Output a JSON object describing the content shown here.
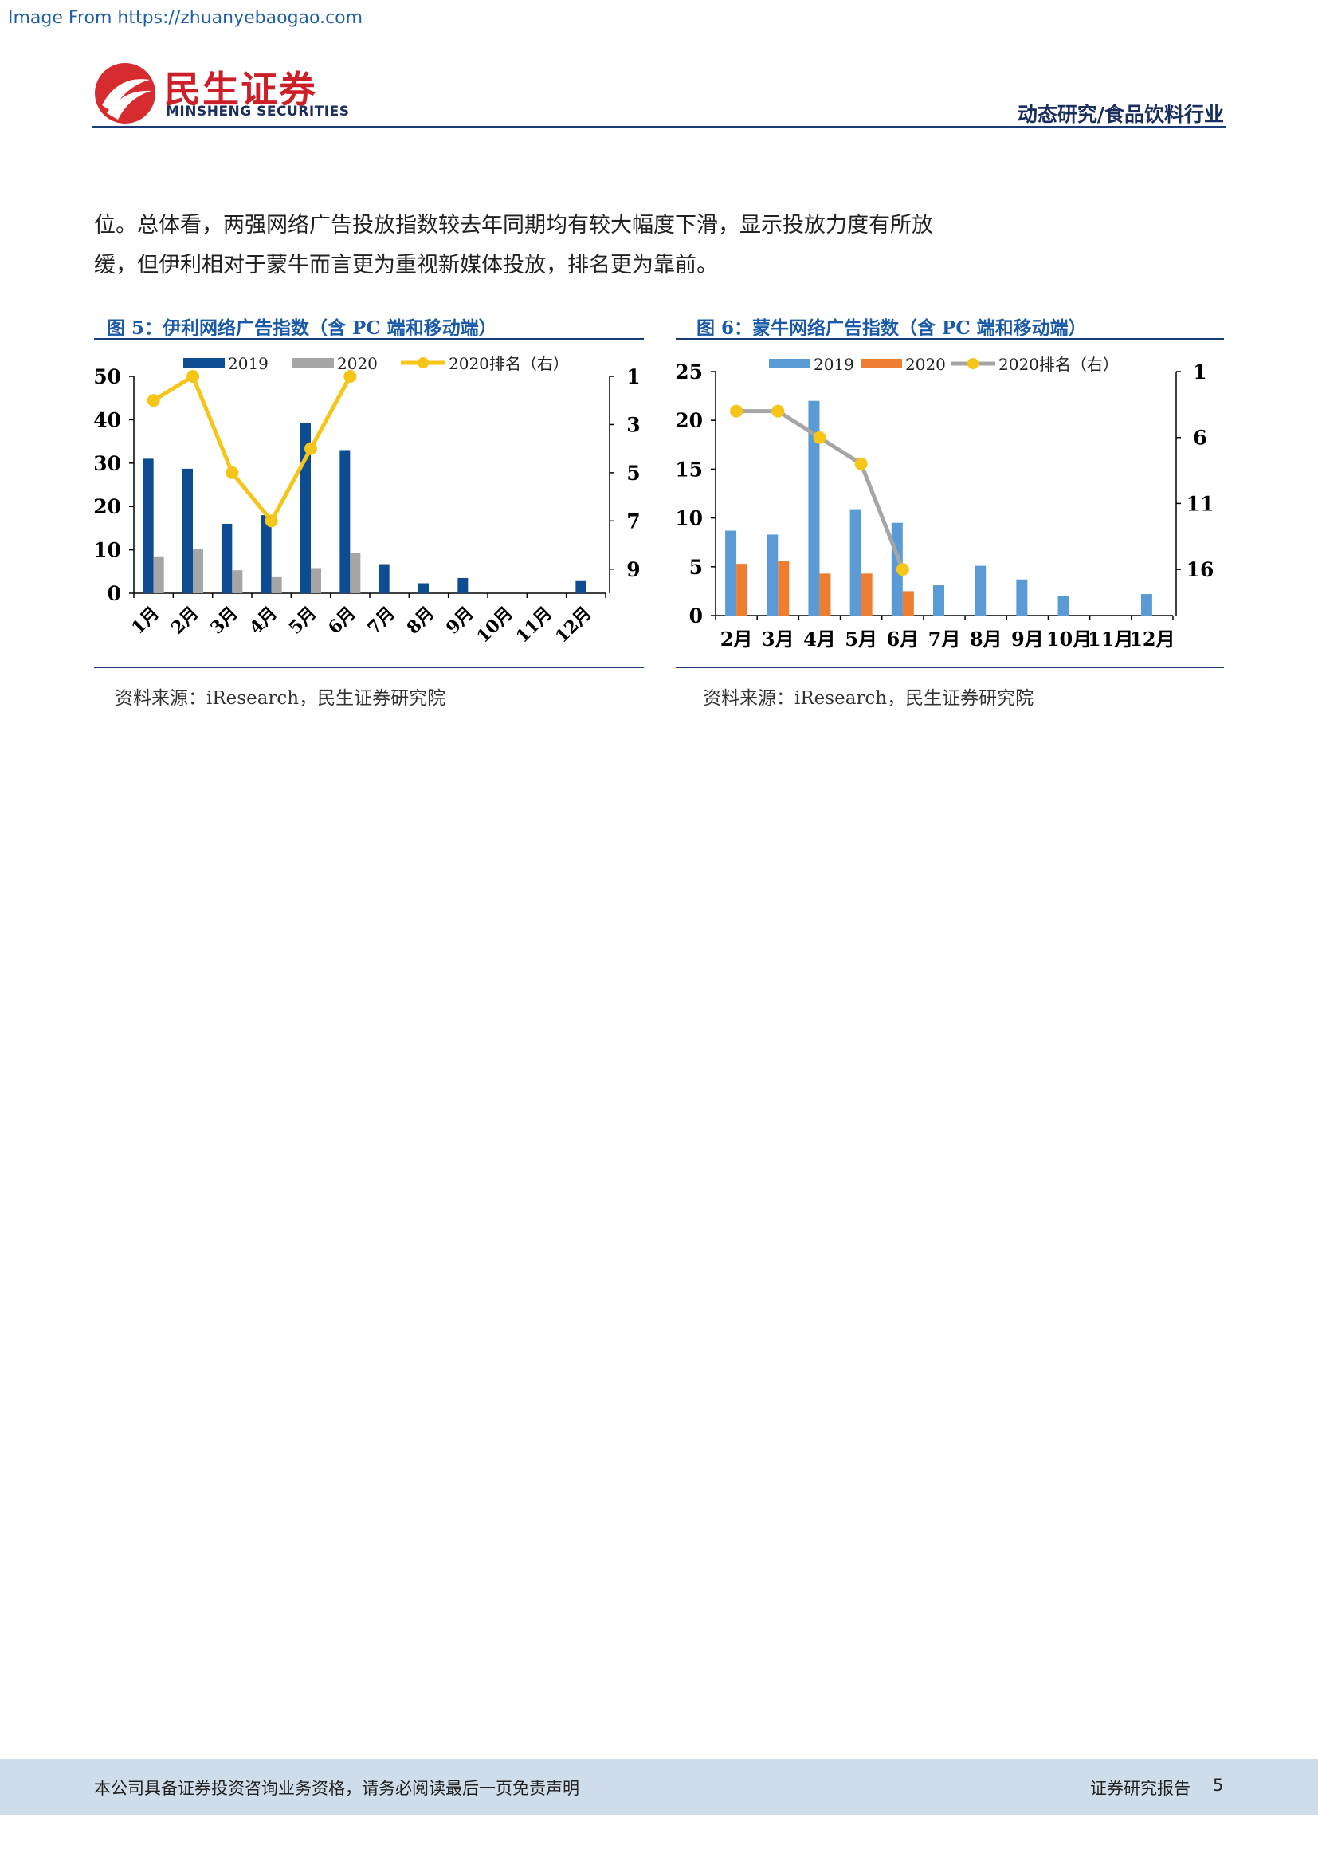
{
  "watermark": "Image From https://zhuanyebaogao.com",
  "brand": {
    "cn": "民生证券",
    "en": "MINSHENG SECURITIES"
  },
  "header": {
    "category": "动态研究/食品饮料行业"
  },
  "body": {
    "lines": [
      "位。总体看，两强网络广告投放指数较去年同期均有较大幅度下滑，显示投放力度有所放",
      "缓，但伊利相对于蒙牛而言更为重视新媒体投放，排名更为靠前。"
    ]
  },
  "figures": [
    {
      "title": "图 5：伊利网络广告指数（含 PC 端和移动端）",
      "source": "资料来源：iResearch，民生证券研究院"
    },
    {
      "title": "图 6：蒙牛网络广告指数（含 PC 端和移动端）",
      "source": "资料来源：iResearch，民生证券研究院"
    }
  ],
  "chart_data": [
    {
      "type": "bar",
      "categories": [
        "1月",
        "2月",
        "3月",
        "4月",
        "5月",
        "6月",
        "7月",
        "8月",
        "9月",
        "10月",
        "11月",
        "12月"
      ],
      "series": [
        {
          "name": "2019",
          "values": [
            31,
            28.7,
            16,
            18,
            39.3,
            33,
            6.7,
            2.3,
            3.5,
            null,
            null,
            2.8
          ],
          "color": "#0e4c92"
        },
        {
          "name": "2020",
          "values": [
            8.5,
            10.3,
            5.3,
            3.7,
            5.8,
            9.3,
            null,
            null,
            null,
            null,
            null,
            null
          ],
          "color": "#a6a6a6"
        },
        {
          "name": "2020排名（右）",
          "type": "line",
          "axis": "right",
          "values": [
            2,
            1,
            5,
            7,
            4,
            1,
            null,
            null,
            null,
            null,
            null,
            null
          ],
          "color": "#f5c518"
        }
      ],
      "ylim": [
        0,
        50
      ],
      "yticks": [
        0,
        10,
        20,
        30,
        40,
        50
      ],
      "y2lim": [
        10,
        1
      ],
      "y2ticks": [
        1,
        3,
        5,
        7,
        9
      ],
      "y2_reversed": true,
      "legend": "top"
    },
    {
      "type": "bar",
      "categories": [
        "2月",
        "3月",
        "4月",
        "5月",
        "6月",
        "7月",
        "8月",
        "9月",
        "10月",
        "11月",
        "12月"
      ],
      "series": [
        {
          "name": "2019",
          "values": [
            8.7,
            8.3,
            22,
            10.9,
            9.5,
            3.1,
            5.1,
            3.7,
            2,
            null,
            2.2
          ],
          "color": "#5b9bd5"
        },
        {
          "name": "2020",
          "values": [
            5.3,
            5.6,
            4.3,
            4.3,
            2.5,
            null,
            null,
            null,
            null,
            null,
            null
          ],
          "color": "#ed7d31"
        },
        {
          "name": "2020排名（右）",
          "type": "line",
          "axis": "right",
          "values": [
            4,
            4,
            6,
            8,
            16,
            null,
            null,
            null,
            null,
            null,
            null
          ],
          "color": "#a5a5a5",
          "marker_color": "#f5c518"
        }
      ],
      "ylim": [
        0,
        25
      ],
      "yticks": [
        0,
        5,
        10,
        15,
        20,
        25
      ],
      "y2lim": [
        19.5,
        1
      ],
      "y2ticks": [
        1,
        6,
        11,
        16
      ],
      "y2_reversed": true,
      "legend": "top"
    }
  ],
  "footer": {
    "disclaimer": "本公司具备证券投资咨询业务资格，请务必阅读最后一页免责声明",
    "label": "证券研究报告",
    "page": "5"
  }
}
